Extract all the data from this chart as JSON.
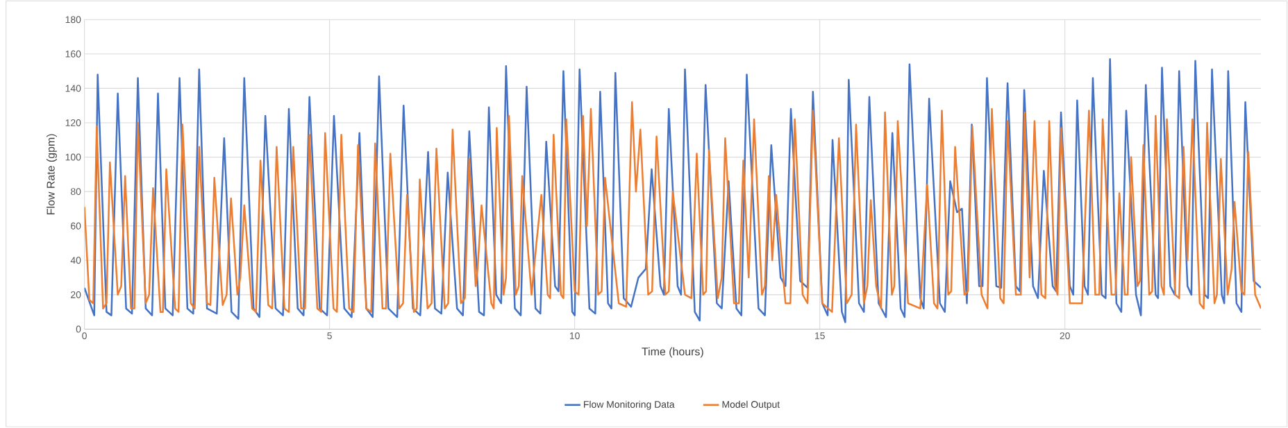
{
  "chart_data": {
    "type": "line",
    "xlabel": "Time (hours)",
    "ylabel": "Flow Rate (gpm)",
    "xlim": [
      0,
      24
    ],
    "ylim": [
      0,
      180
    ],
    "xticks": [
      0,
      5,
      10,
      15,
      20
    ],
    "yticks": [
      0,
      20,
      40,
      60,
      80,
      100,
      120,
      140,
      160,
      180
    ],
    "grid": true,
    "legend": "bottom",
    "series": [
      {
        "name": "Flow Monitoring Data",
        "color": "#4472c4",
        "x": [
          0,
          0.2,
          0.27,
          0.45,
          0.55,
          0.68,
          0.85,
          0.97,
          1.09,
          1.25,
          1.38,
          1.5,
          1.65,
          1.8,
          1.94,
          2.1,
          2.22,
          2.34,
          2.5,
          2.7,
          2.85,
          3.0,
          3.14,
          3.26,
          3.45,
          3.57,
          3.69,
          3.9,
          4.05,
          4.17,
          4.35,
          4.47,
          4.59,
          4.8,
          4.95,
          5.09,
          5.3,
          5.45,
          5.61,
          5.75,
          5.88,
          6.01,
          6.2,
          6.38,
          6.51,
          6.7,
          6.85,
          7.01,
          7.15,
          7.28,
          7.41,
          7.6,
          7.72,
          7.85,
          8.05,
          8.15,
          8.25,
          8.4,
          8.5,
          8.6,
          8.78,
          8.9,
          9.02,
          9.2,
          9.3,
          9.42,
          9.6,
          9.67,
          9.77,
          9.95,
          10.0,
          10.1,
          10.3,
          10.42,
          10.52,
          10.68,
          10.75,
          10.83,
          11.0,
          11.15,
          11.3,
          11.45,
          11.57,
          11.75,
          11.82,
          11.92,
          12.1,
          12.17,
          12.25,
          12.45,
          12.55,
          12.67,
          12.9,
          13.0,
          13.14,
          13.3,
          13.4,
          13.51,
          13.75,
          13.88,
          14.01,
          14.2,
          14.3,
          14.41,
          14.6,
          14.75,
          14.86,
          15.05,
          15.16,
          15.26,
          15.45,
          15.52,
          15.59,
          15.8,
          15.9,
          16.01,
          16.2,
          16.35,
          16.48,
          16.65,
          16.73,
          16.83,
          17.05,
          17.12,
          17.23,
          17.45,
          17.55,
          17.66,
          17.8,
          17.9,
          18.0,
          18.1,
          18.25,
          18.32,
          18.41,
          18.6,
          18.7,
          18.83,
          19.0,
          19.08,
          19.17,
          19.35,
          19.45,
          19.57,
          19.75,
          19.82,
          19.92,
          20.1,
          20.17,
          20.25,
          20.4,
          20.47,
          20.57,
          20.75,
          20.83,
          20.92,
          21.05,
          21.15,
          21.25,
          21.45,
          21.55,
          21.65,
          21.85,
          21.9,
          21.98,
          22.15,
          22.24,
          22.33,
          22.5,
          22.58,
          22.66,
          22.85,
          22.92,
          23.0,
          23.2,
          23.25,
          23.33,
          23.5,
          23.6,
          23.68,
          23.85,
          24
        ],
        "values": [
          24,
          8,
          148,
          10,
          8,
          137,
          12,
          9,
          146,
          12,
          8,
          137,
          12,
          8,
          146,
          12,
          9,
          151,
          12,
          9,
          111,
          10,
          6,
          146,
          12,
          7,
          124,
          12,
          8,
          128,
          12,
          8,
          135,
          12,
          8,
          124,
          12,
          7,
          114,
          12,
          7,
          147,
          12,
          7,
          130,
          12,
          8,
          103,
          12,
          9,
          91,
          12,
          8,
          115,
          10,
          8,
          129,
          20,
          15,
          153,
          12,
          8,
          141,
          12,
          9,
          109,
          25,
          22,
          150,
          10,
          8,
          151,
          12,
          9,
          138,
          15,
          12,
          149,
          18,
          13,
          30,
          35,
          93,
          25,
          20,
          128,
          25,
          20,
          151,
          10,
          5,
          142,
          15,
          12,
          86,
          12,
          8,
          148,
          12,
          8,
          107,
          30,
          25,
          128,
          28,
          24,
          138,
          15,
          8,
          110,
          10,
          4,
          145,
          15,
          10,
          135,
          15,
          7,
          114,
          12,
          7,
          154,
          18,
          12,
          134,
          15,
          10,
          86,
          68,
          70,
          15,
          119,
          25,
          25,
          146,
          25,
          24,
          143,
          25,
          22,
          139,
          25,
          18,
          92,
          25,
          22,
          126,
          25,
          20,
          133,
          25,
          20,
          146,
          20,
          18,
          157,
          15,
          10,
          127,
          20,
          8,
          142,
          20,
          18,
          152,
          25,
          20,
          150,
          25,
          20,
          156,
          20,
          18,
          151,
          20,
          15,
          150,
          15,
          10,
          132,
          28,
          24
        ]
      },
      {
        "name": "Model Output",
        "color": "#ed7d31",
        "x": [
          0,
          0.1,
          0.18,
          0.25,
          0.38,
          0.45,
          0.52,
          0.68,
          0.75,
          0.83,
          0.95,
          1.02,
          1.09,
          1.25,
          1.32,
          1.4,
          1.55,
          1.6,
          1.67,
          1.85,
          1.92,
          2.0,
          2.17,
          2.25,
          2.34,
          2.5,
          2.57,
          2.65,
          2.82,
          2.9,
          2.99,
          3.12,
          3.18,
          3.26,
          3.42,
          3.5,
          3.59,
          3.75,
          3.83,
          3.92,
          4.08,
          4.17,
          4.26,
          4.42,
          4.5,
          4.59,
          4.75,
          4.83,
          4.91,
          5.08,
          5.15,
          5.24,
          5.4,
          5.49,
          5.58,
          5.75,
          5.85,
          5.93,
          6.08,
          6.15,
          6.24,
          6.42,
          6.5,
          6.58,
          6.72,
          6.78,
          6.84,
          7.0,
          7.08,
          7.18,
          7.35,
          7.42,
          7.51,
          7.68,
          7.76,
          7.85,
          7.98,
          8.02,
          8.1,
          8.3,
          8.35,
          8.41,
          8.55,
          8.6,
          8.66,
          8.8,
          8.86,
          8.93,
          9.12,
          9.22,
          9.32,
          9.45,
          9.5,
          9.57,
          9.72,
          9.77,
          9.83,
          10.0,
          10.08,
          10.17,
          10.25,
          10.33,
          10.48,
          10.55,
          10.62,
          10.9,
          11.05,
          11.17,
          11.25,
          11.34,
          11.5,
          11.58,
          11.67,
          11.85,
          11.92,
          12.0,
          12.25,
          12.38,
          12.49,
          12.62,
          12.68,
          12.74,
          12.92,
          13.0,
          13.07,
          13.25,
          13.35,
          13.44,
          13.55,
          13.66,
          13.82,
          13.88,
          13.96,
          14.03,
          14.11,
          14.3,
          14.4,
          14.49,
          14.65,
          14.75,
          14.86,
          15.05,
          15.25,
          15.39,
          15.55,
          15.65,
          15.74,
          15.9,
          15.97,
          16.04,
          16.15,
          16.25,
          16.33,
          16.47,
          16.52,
          16.59,
          16.8,
          17.05,
          17.19,
          17.33,
          17.4,
          17.49,
          17.62,
          17.68,
          17.76,
          17.95,
          18.02,
          18.11,
          18.3,
          18.42,
          18.51,
          18.68,
          18.75,
          18.83,
          19.0,
          19.1,
          19.18,
          19.28,
          19.38,
          19.52,
          19.6,
          19.68,
          19.8,
          19.85,
          19.92,
          20.1,
          20.35,
          20.49,
          20.62,
          20.7,
          20.77,
          20.95,
          21.03,
          21.11,
          21.22,
          21.28,
          21.35,
          21.48,
          21.53,
          21.6,
          21.72,
          21.78,
          21.85,
          21.97,
          22.02,
          22.08,
          22.25,
          22.33,
          22.42,
          22.5,
          22.6,
          22.75,
          22.83,
          22.9,
          23.05,
          23.1,
          23.18,
          23.32,
          23.4,
          23.46,
          23.6,
          23.66,
          23.74,
          23.88,
          24
        ],
        "values": [
          71,
          17,
          15,
          118,
          12,
          15,
          97,
          20,
          25,
          89,
          12,
          12,
          120,
          15,
          20,
          82,
          10,
          10,
          93,
          12,
          10,
          119,
          15,
          12,
          106,
          15,
          14,
          88,
          14,
          20,
          76,
          20,
          30,
          72,
          12,
          10,
          98,
          14,
          12,
          106,
          12,
          10,
          106,
          12,
          12,
          113,
          12,
          10,
          114,
          12,
          10,
          113,
          12,
          10,
          107,
          12,
          10,
          108,
          12,
          12,
          102,
          12,
          15,
          78,
          10,
          12,
          87,
          12,
          15,
          105,
          12,
          15,
          116,
          15,
          18,
          99,
          25,
          35,
          72,
          15,
          12,
          117,
          20,
          30,
          124,
          20,
          25,
          89,
          20,
          50,
          78,
          20,
          18,
          113,
          20,
          18,
          122,
          22,
          20,
          124,
          60,
          128,
          20,
          22,
          88,
          15,
          13,
          132,
          80,
          116,
          20,
          22,
          112,
          20,
          22,
          80,
          20,
          18,
          102,
          20,
          22,
          104,
          18,
          30,
          111,
          15,
          15,
          98,
          30,
          122,
          20,
          25,
          89,
          40,
          78,
          15,
          15,
          122,
          20,
          15,
          127,
          15,
          10,
          111,
          15,
          20,
          119,
          15,
          25,
          75,
          25,
          12,
          126,
          20,
          25,
          121,
          15,
          12,
          84,
          15,
          12,
          127,
          20,
          22,
          106,
          20,
          22,
          118,
          20,
          12,
          128,
          18,
          15,
          121,
          20,
          20,
          126,
          30,
          121,
          20,
          18,
          121,
          25,
          20,
          117,
          15,
          15,
          127,
          20,
          20,
          122,
          20,
          20,
          79,
          20,
          20,
          100,
          25,
          28,
          107,
          20,
          22,
          124,
          25,
          20,
          122,
          20,
          18,
          106,
          40,
          122,
          15,
          12,
          120,
          15,
          20,
          99,
          20,
          35,
          74,
          22,
          20,
          103,
          20,
          12
        ]
      }
    ]
  }
}
